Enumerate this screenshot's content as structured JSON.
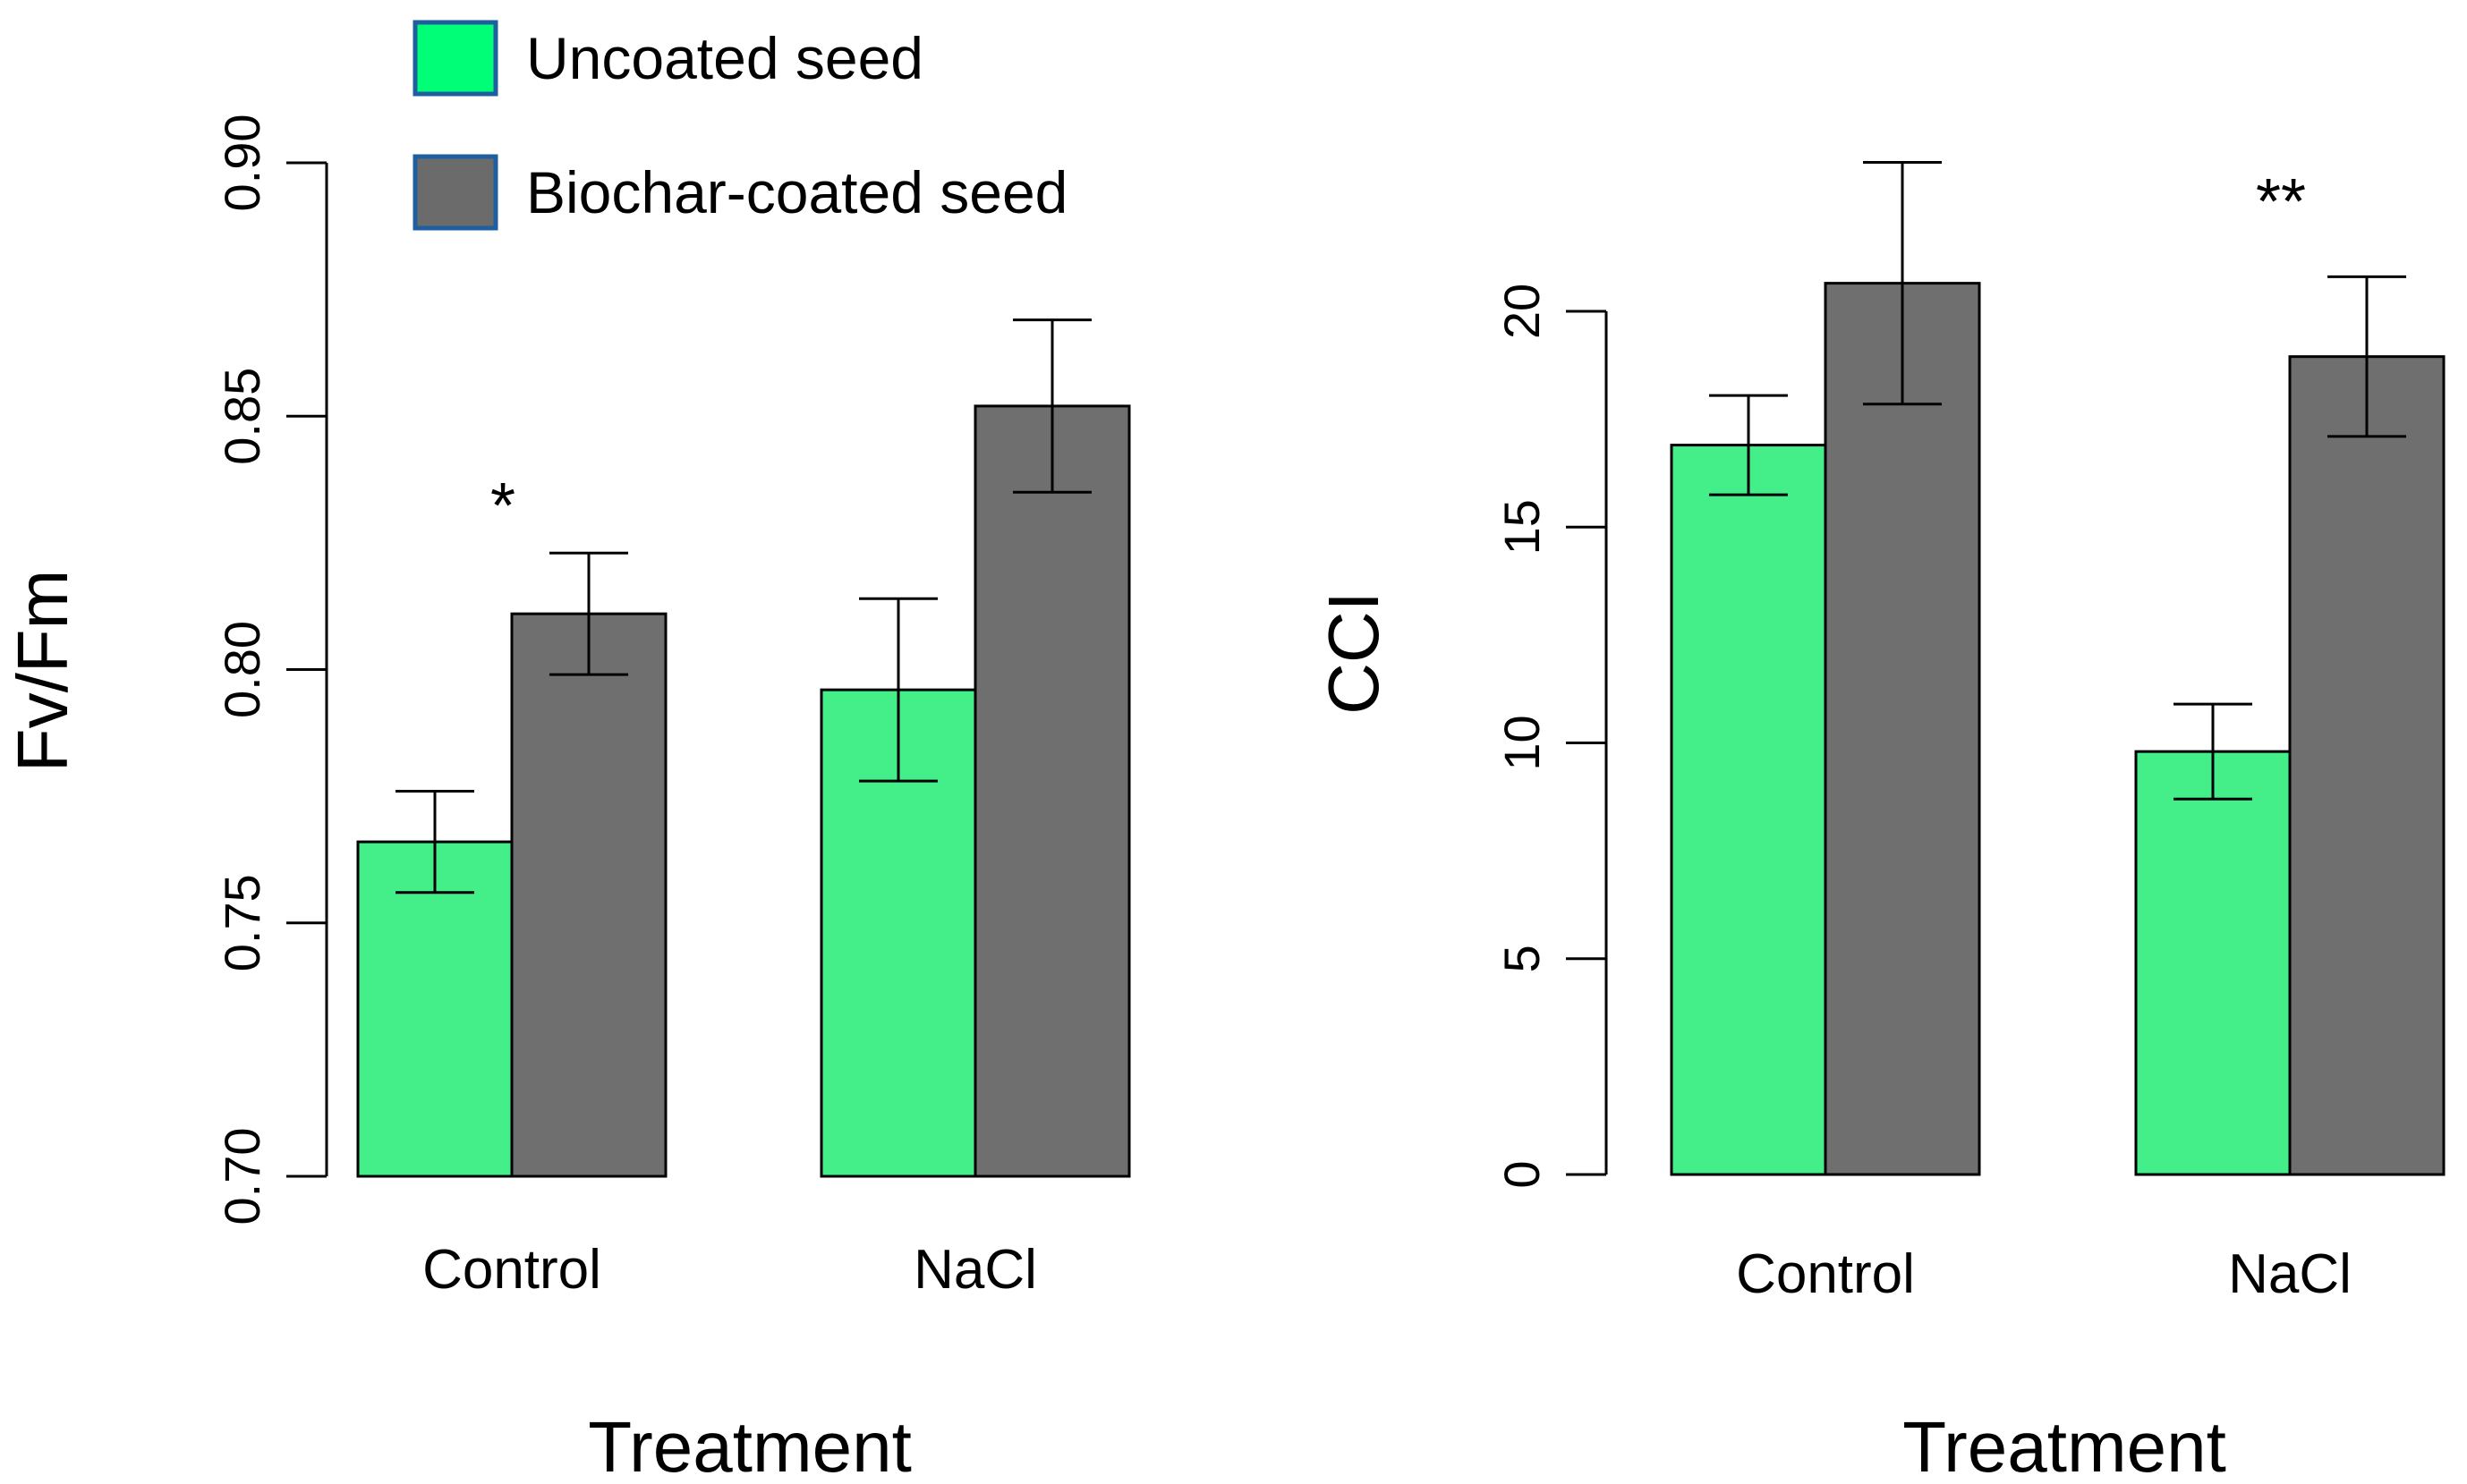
{
  "colors": {
    "uncoated": "#44ee88",
    "biochar": "#6f6f6f",
    "legend_uncoated": "#00ff77",
    "legend_biochar": "#6b6b6b",
    "legend_border": "#1f5f9f",
    "axis": "#000000"
  },
  "legend": {
    "items": [
      {
        "label": "Uncoated seed",
        "color_key": "legend_uncoated"
      },
      {
        "label": "Biochar-coated seed",
        "color_key": "legend_biochar"
      }
    ]
  },
  "chart_data": [
    {
      "type": "bar",
      "title": "",
      "xlabel": "Treatment",
      "ylabel": "Fv/Fm",
      "ylim": [
        0.7,
        0.9
      ],
      "yticks": [
        "0.70",
        "0.75",
        "0.80",
        "0.85",
        "0.90"
      ],
      "categories": [
        "Control",
        "NaCl"
      ],
      "series": [
        {
          "name": "Uncoated seed",
          "color_key": "uncoated",
          "values": [
            0.766,
            0.796
          ],
          "err": [
            0.01,
            0.018
          ]
        },
        {
          "name": "Biochar-coated seed",
          "color_key": "biochar",
          "values": [
            0.811,
            0.852
          ],
          "err": [
            0.012,
            0.017
          ]
        }
      ],
      "annotations": [
        {
          "text": "*",
          "category": "Control"
        }
      ]
    },
    {
      "type": "bar",
      "title": "",
      "xlabel": "Treatment",
      "ylabel": "CCI",
      "ylim": [
        0,
        20
      ],
      "yticks": [
        "0",
        "5",
        "10",
        "15",
        "20"
      ],
      "categories": [
        "Control",
        "NaCl"
      ],
      "series": [
        {
          "name": "Uncoated seed",
          "color_key": "uncoated",
          "values": [
            16.9,
            9.8
          ],
          "err": [
            1.15,
            1.1
          ]
        },
        {
          "name": "Biochar-coated seed",
          "color_key": "biochar",
          "values": [
            20.65,
            18.95
          ],
          "err": [
            2.8,
            1.85
          ]
        }
      ],
      "annotations": [
        {
          "text": "**",
          "category": "NaCl"
        }
      ]
    }
  ]
}
